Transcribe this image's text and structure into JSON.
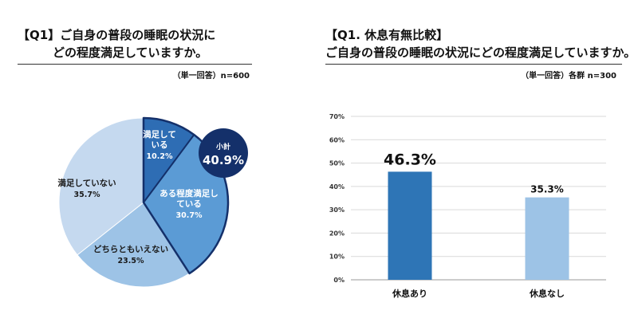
{
  "left": {
    "title_line1": "【Q1】ご自身の普段の睡眠の状況に",
    "title_line2": "どの程度満足していますか。",
    "note": "（単一回答）n=600"
  },
  "right": {
    "title_line1": "【Q1. 休息有無比較】",
    "title_line2": "ご自身の普段の睡眠の状況にどの程度満足していますか。",
    "note": "（単一回答）各群 n=300"
  },
  "subtotal": {
    "label": "小計",
    "value": "40.9%"
  },
  "chart_data": [
    {
      "type": "pie",
      "slices": [
        {
          "label_lines": [
            "満足して",
            "いる"
          ],
          "value": 10.2,
          "value_label": "10.2%",
          "color": "#2e6db4",
          "highlight": true,
          "label_color": "#ffffff"
        },
        {
          "label_lines": [
            "ある程度満足し",
            "ている"
          ],
          "value": 30.7,
          "value_label": "30.7%",
          "color": "#5b9bd5",
          "highlight": true,
          "label_color": "#ffffff"
        },
        {
          "label_lines": [
            "どちらともいえない"
          ],
          "value": 23.5,
          "value_label": "23.5%",
          "color": "#9dc3e6",
          "highlight": false,
          "label_color": "#1a1a1a"
        },
        {
          "label_lines": [
            "満足していない"
          ],
          "value": 35.7,
          "value_label": "35.7%",
          "color": "#c5d9ef",
          "highlight": false,
          "label_color": "#1a1a1a"
        }
      ]
    },
    {
      "type": "bar",
      "categories": [
        "休息あり",
        "休息なし"
      ],
      "values": [
        46.3,
        35.3
      ],
      "value_labels": [
        "46.3%",
        "35.3%"
      ],
      "colors": [
        "#2e75b6",
        "#9dc3e6"
      ],
      "yticks": [
        "0%",
        "10%",
        "20%",
        "30%",
        "40%",
        "50%",
        "60%",
        "70%"
      ],
      "ylim": [
        0,
        70
      ],
      "grid": true
    }
  ]
}
